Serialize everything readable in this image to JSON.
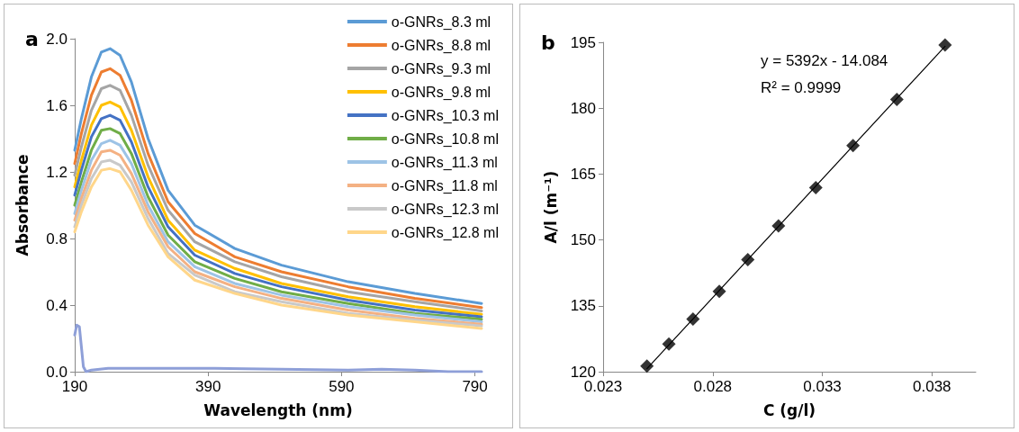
{
  "chart_data": [
    {
      "type": "line",
      "title": "a",
      "xlabel": "Wavelength (nm)",
      "ylabel": "Absorbance",
      "xlim": [
        190,
        800
      ],
      "xticks": [
        190,
        390,
        590,
        790
      ],
      "ylim": [
        0,
        2
      ],
      "yticks": [
        {
          "value": 0,
          "label": "0.0"
        },
        0.4,
        0.8,
        1.2,
        1.6,
        {
          "value": 2,
          "label": "2.0"
        }
      ],
      "grid": false,
      "legend": "top right",
      "marker": "none",
      "line_style": "solid",
      "x": [
        190,
        200,
        215,
        230,
        243,
        258,
        275,
        300,
        330,
        370,
        430,
        500,
        600,
        700,
        800
      ],
      "series": [
        {
          "name": "o-GNRs_8.3 ml",
          "color": "#5b9bd5",
          "values": [
            1.33,
            1.52,
            1.77,
            1.92,
            1.94,
            1.9,
            1.74,
            1.4,
            1.09,
            0.88,
            0.74,
            0.64,
            0.54,
            0.47,
            0.41
          ]
        },
        {
          "name": "o-GNRs_8.8 ml",
          "color": "#ed7d31",
          "values": [
            1.25,
            1.43,
            1.66,
            1.8,
            1.82,
            1.78,
            1.63,
            1.31,
            1.02,
            0.83,
            0.69,
            0.6,
            0.51,
            0.44,
            0.385
          ]
        },
        {
          "name": "o-GNRs_9.3 ml",
          "color": "#a5a5a5",
          "values": [
            1.18,
            1.35,
            1.57,
            1.7,
            1.72,
            1.69,
            1.54,
            1.24,
            0.97,
            0.78,
            0.66,
            0.57,
            0.48,
            0.42,
            0.365
          ]
        },
        {
          "name": "o-GNRs_9.8 ml",
          "color": "#ffc000",
          "values": [
            1.11,
            1.27,
            1.48,
            1.6,
            1.62,
            1.59,
            1.45,
            1.17,
            0.91,
            0.73,
            0.62,
            0.53,
            0.45,
            0.39,
            0.345
          ]
        },
        {
          "name": "o-GNRs_10.3 ml",
          "color": "#4472c4",
          "values": [
            1.06,
            1.21,
            1.41,
            1.52,
            1.54,
            1.51,
            1.38,
            1.11,
            0.87,
            0.7,
            0.59,
            0.51,
            0.43,
            0.37,
            0.33
          ]
        },
        {
          "name": "o-GNRs_10.8 ml",
          "color": "#70ad47",
          "values": [
            1.0,
            1.14,
            1.33,
            1.45,
            1.46,
            1.43,
            1.31,
            1.05,
            0.82,
            0.66,
            0.56,
            0.48,
            0.41,
            0.35,
            0.315
          ]
        },
        {
          "name": "o-GNRs_11.3 ml",
          "color": "#9dc3e6",
          "values": [
            0.95,
            1.09,
            1.27,
            1.37,
            1.39,
            1.36,
            1.25,
            1.0,
            0.78,
            0.63,
            0.53,
            0.46,
            0.39,
            0.34,
            0.3
          ]
        },
        {
          "name": "o-GNRs_11.8 ml",
          "color": "#f4b183",
          "values": [
            0.91,
            1.04,
            1.21,
            1.32,
            1.33,
            1.3,
            1.19,
            0.96,
            0.75,
            0.6,
            0.51,
            0.44,
            0.37,
            0.32,
            0.285
          ]
        },
        {
          "name": "o-GNRs_12.3 ml",
          "color": "#c9c9c9",
          "values": [
            0.87,
            1.0,
            1.16,
            1.26,
            1.27,
            1.24,
            1.14,
            0.92,
            0.71,
            0.58,
            0.48,
            0.42,
            0.35,
            0.31,
            0.275
          ]
        },
        {
          "name": "o-GNRs_12.8 ml",
          "color": "#ffd68a",
          "values": [
            0.84,
            0.96,
            1.11,
            1.21,
            1.22,
            1.2,
            1.09,
            0.88,
            0.69,
            0.55,
            0.47,
            0.4,
            0.34,
            0.3,
            0.26
          ]
        },
        {
          "color": "#8e9fd8",
          "x": [
            190,
            193,
            197,
            200,
            203,
            207,
            215,
            240,
            300,
            400,
            500,
            600,
            650,
            700,
            750,
            800
          ],
          "values": [
            0.22,
            0.28,
            0.27,
            0.15,
            0.03,
            0.0,
            0.01,
            0.02,
            0.02,
            0.02,
            0.015,
            0.01,
            0.015,
            0.01,
            0.0,
            0.0
          ]
        }
      ]
    },
    {
      "type": "scatter",
      "title": "b",
      "xlabel": "C (g/l)",
      "ylabel": "A/l (m⁻¹)",
      "xlim": [
        0.023,
        0.04
      ],
      "xticks": [
        0.023,
        0.028,
        0.033,
        0.038
      ],
      "ylim": [
        120,
        195
      ],
      "yticks": [
        120,
        135,
        150,
        165,
        180,
        195
      ],
      "grid": false,
      "legend": false,
      "marker": "diamond",
      "annotations": [
        "y = 5392x - 14.084",
        "R² = 0.9999"
      ],
      "series": [
        {
          "color": "#000000",
          "x": [
            0.025,
            0.026,
            0.0271,
            0.0283,
            0.0296,
            0.031,
            0.0327,
            0.0344,
            0.0364,
            0.0386
          ],
          "values": [
            121.3,
            126.3,
            132.0,
            138.3,
            145.5,
            153.2,
            161.9,
            171.5,
            182.0,
            194.4
          ]
        },
        {
          "type": "line",
          "marker": "none",
          "color": "#000000",
          "x": [
            0.025,
            0.0386
          ],
          "values": [
            120.7,
            194.1
          ]
        }
      ]
    }
  ]
}
